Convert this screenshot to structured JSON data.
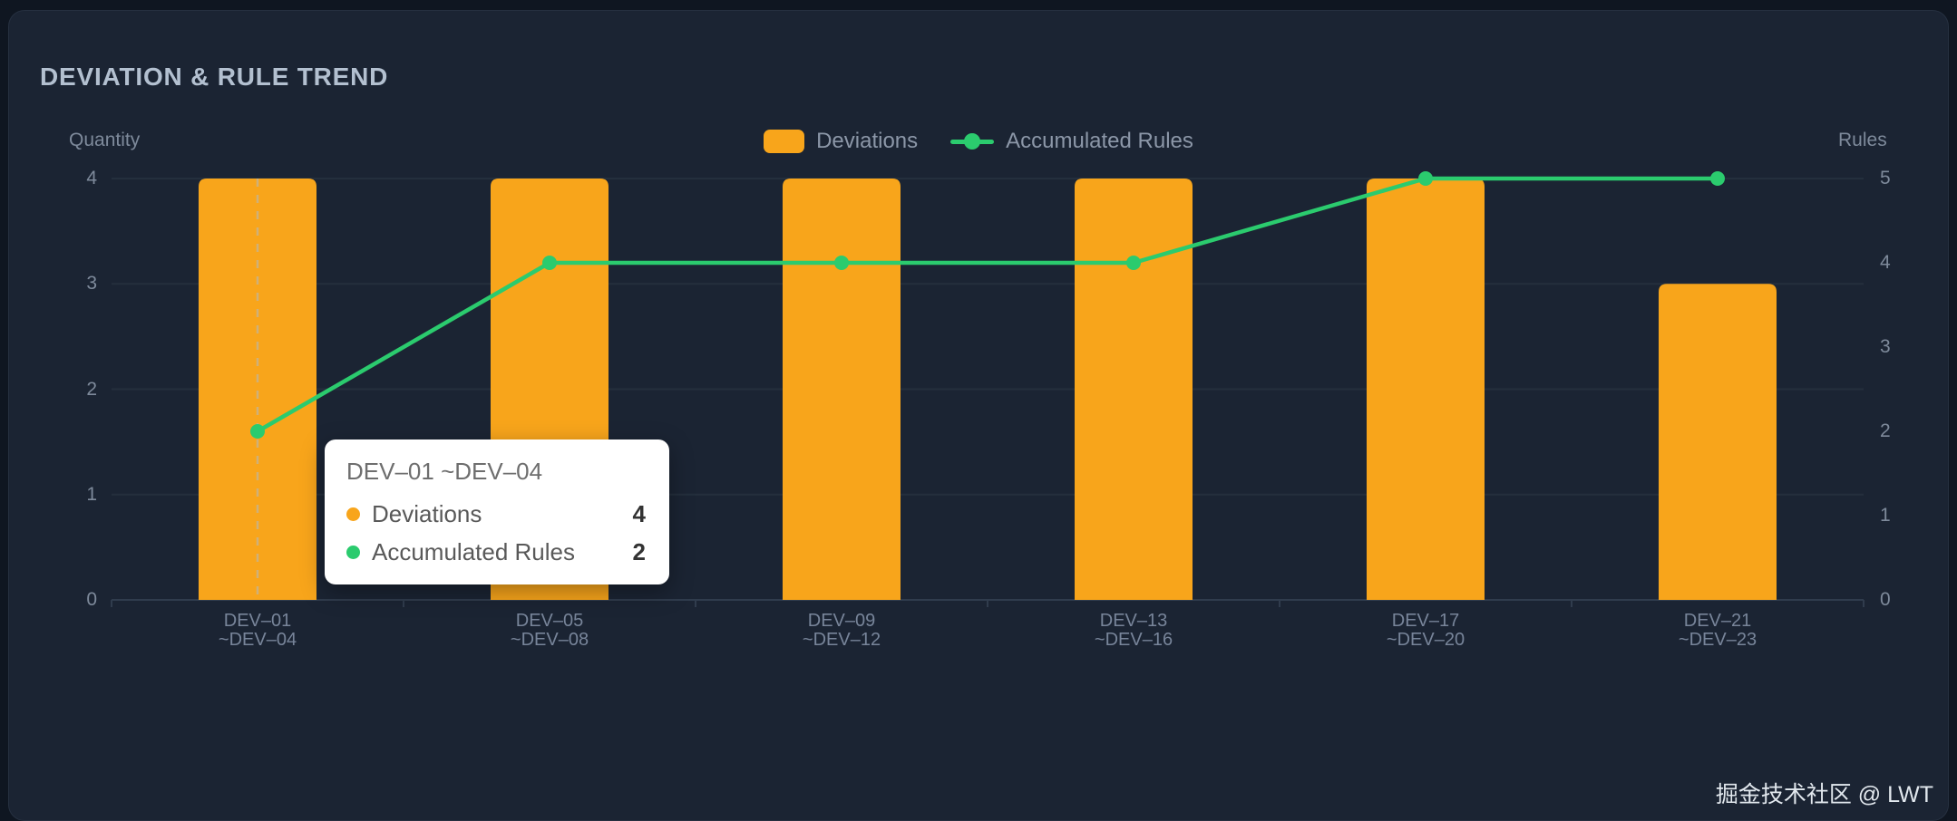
{
  "panel": {
    "title": "DEVIATION & RULE TREND"
  },
  "colors": {
    "bar": "#F8A51B",
    "line": "#2BCB6E",
    "grid": "#242F3D",
    "axis_line": "#303C4D",
    "pointer": "#AEB9C6"
  },
  "chart_data": {
    "type": "combo",
    "title": "DEVIATION & RULE TREND",
    "categories": [
      [
        "DEV–01",
        "~DEV–04"
      ],
      [
        "DEV–05",
        "~DEV–08"
      ],
      [
        "DEV–09",
        "~DEV–12"
      ],
      [
        "DEV–13",
        "~DEV–16"
      ],
      [
        "DEV–17",
        "~DEV–20"
      ],
      [
        "DEV–21",
        "~DEV–23"
      ]
    ],
    "series": [
      {
        "name": "Deviations",
        "type": "bar",
        "axis": "left",
        "color": "#F8A51B",
        "values": [
          4,
          4,
          4,
          4,
          4,
          3
        ]
      },
      {
        "name": "Accumulated Rules",
        "type": "line",
        "axis": "right",
        "color": "#2BCB6E",
        "values": [
          2,
          4,
          4,
          4,
          5,
          5
        ]
      }
    ],
    "y_left": {
      "name": "Quantity",
      "min": 0,
      "max": 4,
      "ticks": [
        0,
        1,
        2,
        3,
        4
      ]
    },
    "y_right": {
      "name": "Rules",
      "min": 0,
      "max": 5,
      "ticks": [
        0,
        1,
        2,
        3,
        4,
        5
      ]
    },
    "legend": [
      "Deviations",
      "Accumulated Rules"
    ],
    "legend_position": "top-center",
    "grid": true,
    "hover_index": 0
  },
  "tooltip": {
    "title": "DEV–01 ~DEV–04",
    "rows": [
      {
        "label": "Deviations",
        "value": "4",
        "color": "#F8A51B"
      },
      {
        "label": "Accumulated Rules",
        "value": "2",
        "color": "#2BCB6E"
      }
    ]
  },
  "watermark": "掘金技术社区 @ LWT"
}
